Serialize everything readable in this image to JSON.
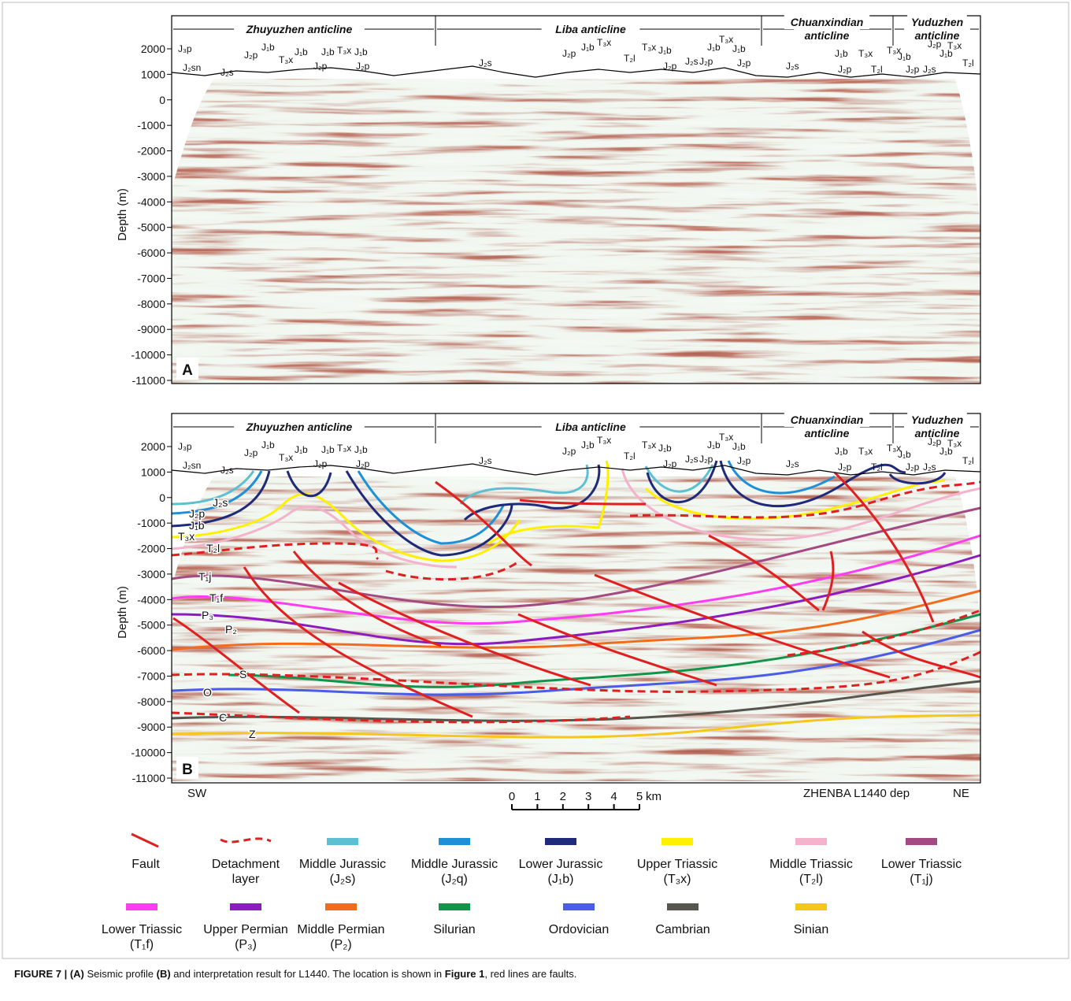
{
  "panels": [
    {
      "letter": "A"
    },
    {
      "letter": "B"
    }
  ],
  "axis": {
    "label": "Depth (m)",
    "ticks": [
      2000,
      1000,
      0,
      -1000,
      -2000,
      -3000,
      -4000,
      -5000,
      -6000,
      -7000,
      -8000,
      -9000,
      -10000,
      -11000
    ]
  },
  "anticlines": [
    {
      "lines": [
        "Zhuyuzhen anticline"
      ]
    },
    {
      "lines": [
        "Liba anticline"
      ]
    },
    {
      "lines": [
        "Chuanxindian",
        "anticline"
      ]
    },
    {
      "lines": [
        "Yuduzhen",
        "anticline"
      ]
    }
  ],
  "surface_labels": [
    "J₃p",
    "J₂sn",
    "J₂s",
    "J₂p",
    "J₁b",
    "T₃x",
    "J₁b",
    "J₂p",
    "J₁b",
    "T₃x",
    "J₁b",
    "J₂p",
    "J₂s",
    "J₂p",
    "J₁b",
    "T₃x",
    "T₂l",
    "T₃x",
    "J₁b",
    "J₂p",
    "J₂s",
    "J₂p",
    "J₁b",
    "T₃x",
    "J₁b",
    "J₂p",
    "J₂s",
    "J₂p",
    "J₁b",
    "T₃x",
    "T₂l",
    "T₃x",
    "J₁b",
    "J₂p",
    "J₂s",
    "J₂p",
    "J₁b",
    "T₃x",
    "T₂l"
  ],
  "horizon_labels": [
    "J₂s",
    "J₂p",
    "J₁b",
    "T₃x",
    "T₂l",
    "T₁j",
    "T₁f",
    "P₃",
    "P₂",
    "S",
    "O",
    "Є",
    "Z"
  ],
  "orientation": {
    "left": "SW",
    "right_note": "ZHENBA  L1440 dep",
    "right": "NE"
  },
  "scale_bar": {
    "ticks": [
      0,
      1,
      2,
      3,
      4,
      5
    ],
    "unit": "km"
  },
  "legend": [
    {
      "lines": [
        "Fault"
      ],
      "color": "#e02020",
      "style": "fault"
    },
    {
      "lines": [
        "Detachment",
        "layer"
      ],
      "color": "#e02020",
      "style": "dashed"
    },
    {
      "lines": [
        "Middle Jurassic",
        "(J₂s)"
      ],
      "color": "#5cbfd2",
      "style": "solid"
    },
    {
      "lines": [
        "Middle Jurassic",
        "(J₂q)"
      ],
      "color": "#1d90d8",
      "style": "solid"
    },
    {
      "lines": [
        "Lower Jurassic",
        "(J₁b)"
      ],
      "color": "#1f2a7a",
      "style": "solid"
    },
    {
      "lines": [
        "Upper Triassic",
        "(T₃x)"
      ],
      "color": "#fff000",
      "style": "solid"
    },
    {
      "lines": [
        "Middle Triassic",
        "(T₂l)"
      ],
      "color": "#f4b2cc",
      "style": "solid"
    },
    {
      "lines": [
        "Lower Triassic",
        "(T₁j)"
      ],
      "color": "#a34a82",
      "style": "solid"
    },
    {
      "lines": [
        "Lower Triassic",
        "(T₁f)"
      ],
      "color": "#ff3cf2",
      "style": "solid"
    },
    {
      "lines": [
        "Upper Permian",
        "(P₃)"
      ],
      "color": "#8d1bc0",
      "style": "solid"
    },
    {
      "lines": [
        "Middle Permian",
        "(P₂)"
      ],
      "color": "#f36c1e",
      "style": "solid"
    },
    {
      "lines": [
        "Silurian"
      ],
      "color": "#12944b",
      "style": "solid"
    },
    {
      "lines": [
        "Ordovician"
      ],
      "color": "#4b5ce8",
      "style": "solid"
    },
    {
      "lines": [
        "Cambrian"
      ],
      "color": "#56564f",
      "style": "solid"
    },
    {
      "lines": [
        "Sinian"
      ],
      "color": "#f6c61a",
      "style": "solid"
    }
  ],
  "caption": [
    {
      "text": "FIGURE 7 | (A)",
      "bold": true
    },
    {
      "text": " Seismic profile ",
      "bold": false
    },
    {
      "text": "(B)",
      "bold": true
    },
    {
      "text": " and interpretation result for L1440. The location is shown in ",
      "bold": false
    },
    {
      "text": "Figure 1",
      "bold": true
    },
    {
      "text": ", red lines are faults.",
      "bold": false
    }
  ]
}
